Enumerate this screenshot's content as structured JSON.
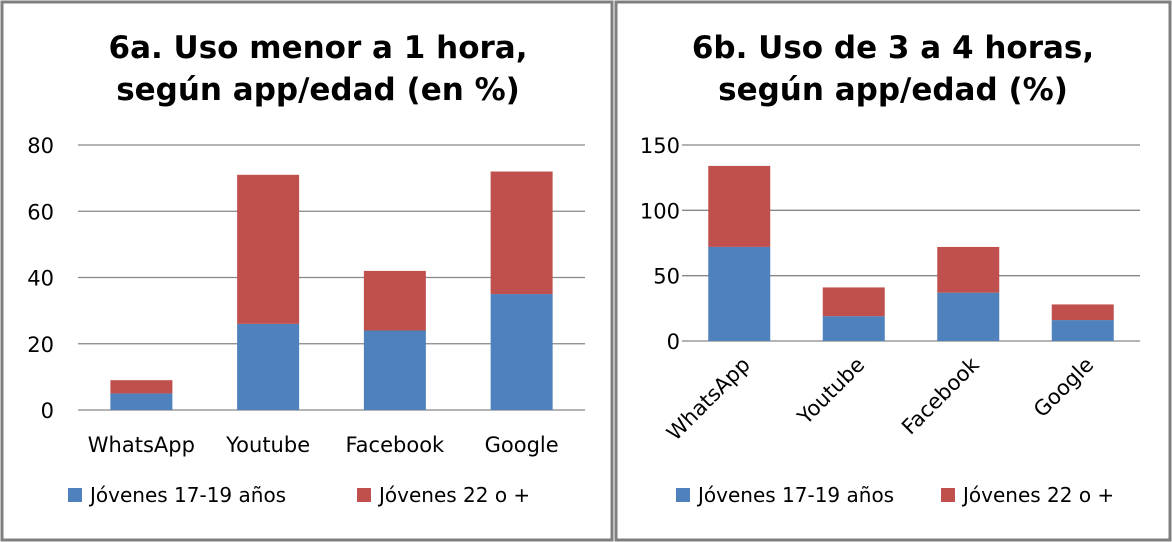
{
  "colors": {
    "series1": "#4f81bd",
    "series2": "#c0504d"
  },
  "chart_data": [
    {
      "type": "bar",
      "stacked": true,
      "title_lines": [
        "6a. Uso menor a 1 hora,",
        "según app/edad (en %)"
      ],
      "categories": [
        "WhatsApp",
        "Youtube",
        "Facebook",
        "Google"
      ],
      "series": [
        {
          "name": "Jóvenes 17-19 años",
          "values": [
            5,
            26,
            24,
            35
          ]
        },
        {
          "name": "Jóvenes 22 o +",
          "values": [
            4,
            45,
            18,
            37
          ]
        }
      ],
      "ylim": [
        0,
        80
      ],
      "yticks": [
        0,
        20,
        40,
        60,
        80
      ],
      "grid": true,
      "legend": "bottom",
      "xlabel_rotation": 0
    },
    {
      "type": "bar",
      "stacked": true,
      "title_lines": [
        "6b. Uso de 3 a 4 horas,",
        "según app/edad (%)"
      ],
      "categories": [
        "WhatsApp",
        "Youtube",
        "Facebook",
        "Google"
      ],
      "series": [
        {
          "name": "Jóvenes 17-19 años",
          "values": [
            72,
            19,
            37,
            16
          ]
        },
        {
          "name": "Jóvenes 22 o +",
          "values": [
            62,
            22,
            35,
            12
          ]
        }
      ],
      "ylim": [
        0,
        150
      ],
      "yticks": [
        0,
        50,
        100,
        150
      ],
      "grid": true,
      "legend": "bottom",
      "xlabel_rotation": -45
    }
  ]
}
